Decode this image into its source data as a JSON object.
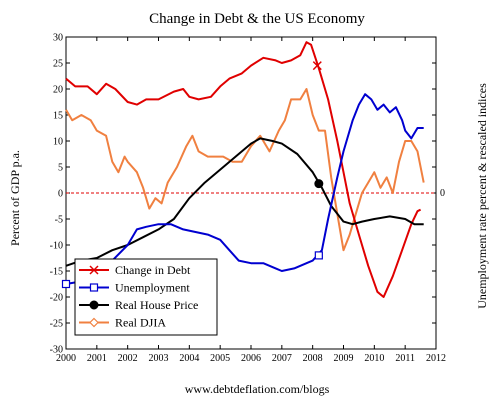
{
  "chart_data": {
    "type": "line",
    "title": "Change in Debt & the US Economy",
    "ylabel_left": "Percent of GDP p.a.",
    "ylabel_right": "Unemployment rate percent & rescaled indices",
    "right_axis_tick": "0",
    "source": "www.debtdeflation.com/blogs",
    "xlim": [
      2000,
      2012
    ],
    "ylim": [
      -30,
      30
    ],
    "x_ticks": [
      "2000",
      "2001",
      "2002",
      "2003",
      "2004",
      "2005",
      "2006",
      "2007",
      "2008",
      "2009",
      "2010",
      "2011",
      "2012"
    ],
    "y_ticks": [
      "30",
      "25",
      "20",
      "15",
      "10",
      "5",
      "0",
      "-5",
      "-10",
      "-15",
      "-20",
      "-25",
      "-30"
    ],
    "zero_line": true,
    "legend_position": "bottom-left",
    "series": [
      {
        "name": "Change in Debt",
        "color": "#e00000",
        "marker": "x",
        "points": [
          [
            2000.0,
            22
          ],
          [
            2000.3,
            20.5
          ],
          [
            2000.7,
            20.5
          ],
          [
            2001.0,
            19
          ],
          [
            2001.3,
            21
          ],
          [
            2001.6,
            20
          ],
          [
            2002.0,
            17.5
          ],
          [
            2002.3,
            17
          ],
          [
            2002.6,
            18
          ],
          [
            2003.0,
            18
          ],
          [
            2003.5,
            19.5
          ],
          [
            2003.8,
            20
          ],
          [
            2004.0,
            18.5
          ],
          [
            2004.3,
            18
          ],
          [
            2004.7,
            18.5
          ],
          [
            2005.0,
            20.5
          ],
          [
            2005.3,
            22
          ],
          [
            2005.7,
            23
          ],
          [
            2006.0,
            24.5
          ],
          [
            2006.4,
            26
          ],
          [
            2006.8,
            25.5
          ],
          [
            2007.0,
            25
          ],
          [
            2007.3,
            25.5
          ],
          [
            2007.6,
            26.5
          ],
          [
            2007.8,
            29
          ],
          [
            2007.95,
            28.5
          ],
          [
            2008.2,
            24
          ],
          [
            2008.5,
            18
          ],
          [
            2008.8,
            10
          ],
          [
            2009.0,
            4
          ],
          [
            2009.2,
            -2
          ],
          [
            2009.5,
            -8
          ],
          [
            2009.8,
            -14
          ],
          [
            2010.1,
            -19
          ],
          [
            2010.3,
            -20
          ],
          [
            2010.6,
            -16
          ],
          [
            2010.9,
            -11
          ],
          [
            2011.2,
            -6
          ],
          [
            2011.4,
            -3.5
          ],
          [
            2011.5,
            -3.2
          ]
        ],
        "marker_points": [
          [
            2008.15,
            24.5
          ]
        ]
      },
      {
        "name": "Unemployment",
        "color": "#0000d0",
        "marker": "square",
        "points": [
          [
            2000.0,
            -17.5
          ],
          [
            2000.5,
            -17
          ],
          [
            2001.0,
            -16
          ],
          [
            2001.5,
            -13
          ],
          [
            2002.0,
            -10
          ],
          [
            2002.3,
            -7
          ],
          [
            2002.6,
            -6.5
          ],
          [
            2003.0,
            -6
          ],
          [
            2003.4,
            -6
          ],
          [
            2003.8,
            -7
          ],
          [
            2004.2,
            -7.5
          ],
          [
            2004.6,
            -8
          ],
          [
            2005.0,
            -9
          ],
          [
            2005.3,
            -11
          ],
          [
            2005.6,
            -13
          ],
          [
            2006.0,
            -13.5
          ],
          [
            2006.4,
            -13.5
          ],
          [
            2006.8,
            -14.5
          ],
          [
            2007.0,
            -15
          ],
          [
            2007.4,
            -14.5
          ],
          [
            2007.8,
            -13.5
          ],
          [
            2008.0,
            -13
          ],
          [
            2008.3,
            -11
          ],
          [
            2008.5,
            -5
          ],
          [
            2008.8,
            3
          ],
          [
            2009.0,
            8
          ],
          [
            2009.3,
            14
          ],
          [
            2009.5,
            17
          ],
          [
            2009.7,
            19
          ],
          [
            2009.9,
            18
          ],
          [
            2010.1,
            16
          ],
          [
            2010.3,
            17
          ],
          [
            2010.5,
            15.5
          ],
          [
            2010.7,
            16.5
          ],
          [
            2010.9,
            14
          ],
          [
            2011.0,
            12
          ],
          [
            2011.2,
            10.5
          ],
          [
            2011.4,
            12.5
          ],
          [
            2011.6,
            12.5
          ]
        ],
        "marker_points": [
          [
            2000.0,
            -17.5
          ],
          [
            2008.2,
            -12
          ]
        ]
      },
      {
        "name": "Real House Price",
        "color": "#000000",
        "marker": "circle",
        "points": [
          [
            2000.0,
            -14
          ],
          [
            2000.5,
            -13
          ],
          [
            2001.0,
            -12.5
          ],
          [
            2001.5,
            -11
          ],
          [
            2002.0,
            -10
          ],
          [
            2002.5,
            -8.5
          ],
          [
            2003.0,
            -7
          ],
          [
            2003.5,
            -5
          ],
          [
            2004.0,
            -1
          ],
          [
            2004.5,
            2
          ],
          [
            2005.0,
            4.5
          ],
          [
            2005.5,
            7
          ],
          [
            2006.0,
            9.5
          ],
          [
            2006.3,
            10.5
          ],
          [
            2006.7,
            10
          ],
          [
            2007.0,
            9.5
          ],
          [
            2007.5,
            7.5
          ],
          [
            2008.0,
            4
          ],
          [
            2008.3,
            1
          ],
          [
            2008.6,
            -2.5
          ],
          [
            2009.0,
            -5.5
          ],
          [
            2009.3,
            -6
          ],
          [
            2009.6,
            -5.5
          ],
          [
            2010.0,
            -5
          ],
          [
            2010.5,
            -4.5
          ],
          [
            2011.0,
            -5
          ],
          [
            2011.3,
            -6
          ],
          [
            2011.6,
            -6
          ]
        ],
        "marker_points": [
          [
            2008.2,
            1.8
          ]
        ]
      },
      {
        "name": "Real DJIA",
        "color": "#f08040",
        "marker": "diamond",
        "points": [
          [
            2000.0,
            16
          ],
          [
            2000.2,
            14
          ],
          [
            2000.5,
            15
          ],
          [
            2000.8,
            14
          ],
          [
            2001.0,
            12
          ],
          [
            2001.3,
            11
          ],
          [
            2001.5,
            6
          ],
          [
            2001.7,
            4
          ],
          [
            2001.9,
            7
          ],
          [
            2002.0,
            6
          ],
          [
            2002.3,
            4
          ],
          [
            2002.5,
            1
          ],
          [
            2002.7,
            -3
          ],
          [
            2002.9,
            -1
          ],
          [
            2003.1,
            -2
          ],
          [
            2003.3,
            2
          ],
          [
            2003.6,
            5
          ],
          [
            2003.9,
            9
          ],
          [
            2004.1,
            11
          ],
          [
            2004.3,
            8
          ],
          [
            2004.6,
            7
          ],
          [
            2004.9,
            7
          ],
          [
            2005.1,
            7
          ],
          [
            2005.4,
            6
          ],
          [
            2005.7,
            6
          ],
          [
            2006.0,
            9
          ],
          [
            2006.3,
            11
          ],
          [
            2006.6,
            8
          ],
          [
            2006.9,
            12
          ],
          [
            2007.1,
            14
          ],
          [
            2007.3,
            18
          ],
          [
            2007.6,
            18
          ],
          [
            2007.8,
            20
          ],
          [
            2008.0,
            15
          ],
          [
            2008.2,
            12
          ],
          [
            2008.4,
            12
          ],
          [
            2008.6,
            3
          ],
          [
            2008.8,
            -4
          ],
          [
            2009.0,
            -11
          ],
          [
            2009.2,
            -8
          ],
          [
            2009.4,
            -4
          ],
          [
            2009.6,
            0
          ],
          [
            2009.8,
            2
          ],
          [
            2010.0,
            4
          ],
          [
            2010.2,
            1
          ],
          [
            2010.4,
            3
          ],
          [
            2010.6,
            0
          ],
          [
            2010.8,
            6
          ],
          [
            2011.0,
            10
          ],
          [
            2011.2,
            10
          ],
          [
            2011.4,
            8
          ],
          [
            2011.6,
            2
          ]
        ],
        "marker_points": []
      }
    ]
  }
}
